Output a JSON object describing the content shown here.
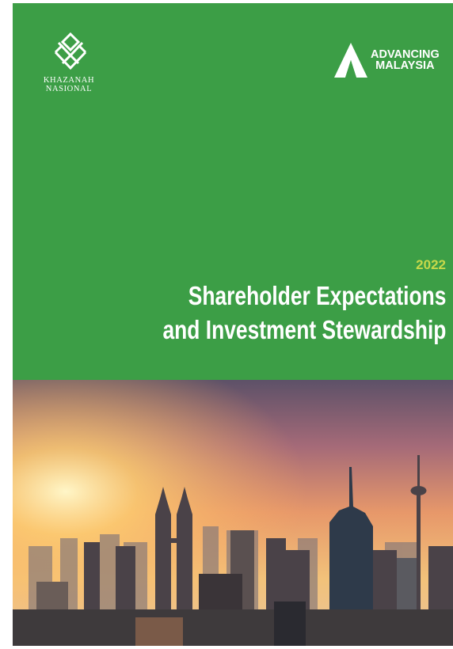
{
  "logo": {
    "name_line1": "KHAZANAH",
    "name_line2": "NASIONAL"
  },
  "tagline": {
    "line1": "ADVANCING",
    "line2": "MALAYSIA"
  },
  "cover": {
    "year": "2022",
    "title_line1": "Shareholder Expectations",
    "title_line2": "and Investment Stewardship"
  }
}
